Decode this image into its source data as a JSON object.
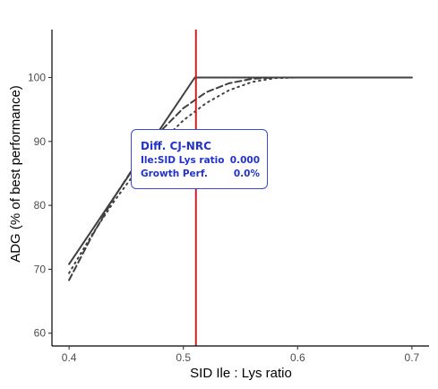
{
  "chart_data": {
    "type": "line",
    "title": "",
    "xlabel": "SID Ile : Lys ratio",
    "ylabel": "ADG (% of best performance)",
    "xlim": [
      0.385,
      0.715
    ],
    "ylim": [
      58.0,
      107.5
    ],
    "x_ticks": [
      0.4,
      0.5,
      0.6,
      0.7
    ],
    "x_tick_labels": [
      "0.4",
      "0.5",
      "0.6",
      "0.7"
    ],
    "y_ticks": [
      60,
      70,
      80,
      90,
      100
    ],
    "y_tick_labels": [
      "60",
      "70",
      "80",
      "90",
      "100"
    ],
    "grid": false,
    "legend": "none",
    "colors": {
      "lines": "#404040",
      "vline": "#cc1f1f",
      "tooltip": "#2233cc"
    },
    "vline_x": 0.511,
    "series": [
      {
        "style": "solid",
        "x": [
          0.4,
          0.51,
          0.7
        ],
        "y": [
          70.8,
          100.0,
          100.0
        ]
      },
      {
        "style": "dashed",
        "x": [
          0.4,
          0.42,
          0.44,
          0.46,
          0.48,
          0.5,
          0.52,
          0.54,
          0.56,
          0.58,
          0.6,
          0.7
        ],
        "y": [
          68.3,
          75.2,
          81.4,
          86.9,
          91.6,
          95.2,
          97.7,
          99.1,
          99.8,
          100.0,
          100.0,
          100.0
        ]
      },
      {
        "style": "dotted",
        "x": [
          0.4,
          0.42,
          0.44,
          0.46,
          0.48,
          0.5,
          0.52,
          0.54,
          0.56,
          0.58,
          0.6,
          0.62,
          0.7
        ],
        "y": [
          69.4,
          75.4,
          80.8,
          85.6,
          89.8,
          93.3,
          96.0,
          98.0,
          99.3,
          99.9,
          100.0,
          100.0,
          100.0
        ]
      }
    ]
  },
  "tooltip": {
    "title": "Diff. CJ-NRC",
    "rows": [
      {
        "label": "Ile:SID Lys ratio",
        "value": "0.000"
      },
      {
        "label": "Growth Perf.",
        "value": "0.0%"
      }
    ]
  }
}
